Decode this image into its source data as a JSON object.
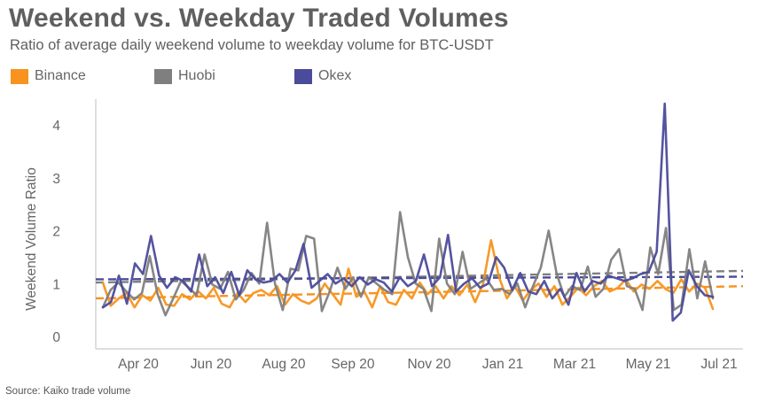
{
  "title": "Weekend vs. Weekday Traded Volumes",
  "subtitle": "Ratio of average daily weekend volume to weekday volume for BTC-USDT",
  "source": "Source: Kaiko trade volume",
  "chart_data": {
    "type": "line",
    "ylabel": "Weekend Volume Ratio",
    "ylim": [
      0,
      4.5
    ],
    "yticks": [
      "0",
      "1",
      "2",
      "3",
      "4"
    ],
    "xticks": [
      "Apr 20",
      "Jun 20",
      "Aug 20",
      "Sep 20",
      "Nov 20",
      "Jan 21",
      "Mar 21",
      "May 21",
      "Jul 21"
    ],
    "series": [
      {
        "name": "Binance",
        "color": "#F7931E",
        "values": [
          1.02,
          0.58,
          0.72,
          0.82,
          0.55,
          0.78,
          0.68,
          0.92,
          0.6,
          0.58,
          0.8,
          0.7,
          0.86,
          0.72,
          0.92,
          0.62,
          0.55,
          0.82,
          0.65,
          0.82,
          0.88,
          0.78,
          0.95,
          0.6,
          0.8,
          0.68,
          0.62,
          0.72,
          1.0,
          0.8,
          0.6,
          1.28,
          0.75,
          0.85,
          0.55,
          0.95,
          0.65,
          0.6,
          0.88,
          0.72,
          1.02,
          0.8,
          0.95,
          0.72,
          0.95,
          0.78,
          0.98,
          0.65,
          1.0,
          1.82,
          1.12,
          0.72,
          0.95,
          0.68,
          0.88,
          1.0,
          0.75,
          0.95,
          0.6,
          0.75,
          0.92,
          0.78,
          0.95,
          1.05,
          0.85,
          0.92,
          1.08,
          0.85,
          0.98,
          0.9,
          1.05,
          0.9,
          0.82,
          1.08,
          0.85,
          1.0,
          0.92,
          0.52
        ],
        "trend": [
          0.72,
          0.95
        ]
      },
      {
        "name": "Huobi",
        "color": "#7F7F7F",
        "values": [
          0.55,
          0.88,
          1.02,
          0.85,
          0.7,
          0.82,
          1.52,
          0.8,
          0.4,
          0.72,
          1.05,
          0.92,
          0.78,
          1.55,
          0.98,
          0.9,
          1.22,
          0.7,
          0.88,
          1.2,
          1.0,
          2.15,
          1.0,
          0.5,
          1.28,
          1.25,
          1.9,
          1.85,
          0.48,
          0.85,
          1.3,
          0.9,
          1.12,
          0.75,
          1.12,
          1.0,
          0.88,
          0.8,
          2.35,
          1.5,
          1.0,
          0.9,
          0.48,
          1.85,
          1.0,
          0.8,
          1.6,
          0.9,
          1.0,
          1.1,
          0.88,
          0.9,
          0.8,
          1.0,
          0.55,
          0.95,
          1.3,
          2.0,
          1.2,
          0.75,
          0.95,
          0.88,
          1.32,
          0.75,
          0.9,
          1.45,
          1.65,
          0.95,
          0.9,
          0.5,
          1.68,
          1.18,
          2.05,
          0.5,
          0.6,
          1.65,
          0.72,
          1.42,
          0.72
        ],
        "trend": [
          1.02,
          1.24
        ]
      },
      {
        "name": "Okex",
        "color": "#4B4B9B",
        "values": [
          0.55,
          0.65,
          1.15,
          0.62,
          1.38,
          1.18,
          1.9,
          1.15,
          0.92,
          1.12,
          1.05,
          0.85,
          1.55,
          0.95,
          1.12,
          0.82,
          1.22,
          0.78,
          1.25,
          1.08,
          1.02,
          1.05,
          1.18,
          1.02,
          1.25,
          1.75,
          0.92,
          1.05,
          1.18,
          1.0,
          1.1,
          0.95,
          1.12,
          0.98,
          1.08,
          1.02,
          0.85,
          1.12,
          0.95,
          1.05,
          1.55,
          0.95,
          1.12,
          1.92,
          0.85,
          1.0,
          1.1,
          0.92,
          1.0,
          1.5,
          1.3,
          0.88,
          1.2,
          0.85,
          0.8,
          1.05,
          0.72,
          0.9,
          0.6,
          1.2,
          0.85,
          1.05,
          1.0,
          1.15,
          1.1,
          1.05,
          1.1,
          1.18,
          1.22,
          1.6,
          4.4,
          0.3,
          0.45,
          1.25,
          0.95,
          0.78,
          0.75
        ],
        "trend": [
          1.08,
          1.13
        ]
      }
    ]
  }
}
